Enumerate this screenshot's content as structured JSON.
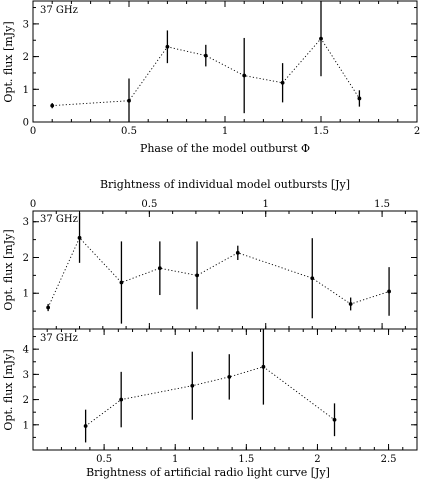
{
  "chart_data": [
    {
      "type": "scatter",
      "panel_label": "37 GHz",
      "xlabel": "Phase of the model outburst Φ",
      "ylabel": "Opt. flux [mJy]",
      "xlim": [
        0,
        2
      ],
      "ylim": [
        0,
        3.7
      ],
      "xticks": [
        0,
        0.5,
        1,
        1.5,
        2
      ],
      "xtick_labels": [
        "0",
        "0.5",
        "1",
        "1.5",
        "2"
      ],
      "yticks": [
        0,
        1,
        2,
        3
      ],
      "ytick_labels": [
        "0",
        "1",
        "2",
        "3"
      ],
      "points": [
        {
          "x": 0.1,
          "y": 0.5,
          "err": 0.08
        },
        {
          "x": 0.5,
          "y": 0.65,
          "err": 0.68
        },
        {
          "x": 0.7,
          "y": 2.3,
          "err": 0.5
        },
        {
          "x": 0.9,
          "y": 2.03,
          "err": 0.33
        },
        {
          "x": 1.1,
          "y": 1.42,
          "err": 1.15
        },
        {
          "x": 1.3,
          "y": 1.2,
          "err": 0.6
        },
        {
          "x": 1.5,
          "y": 2.55,
          "err": 1.15
        },
        {
          "x": 1.7,
          "y": 0.72,
          "err": 0.25
        }
      ]
    },
    {
      "type": "scatter",
      "panel_label": "37 GHz",
      "xlabel": "Brightness of individual model outbursts [Jy]",
      "ylabel": "Opt. flux [mJy]",
      "xlim": [
        0,
        1.65
      ],
      "ylim": [
        0,
        3.3
      ],
      "xticks": [
        0,
        0.5,
        1,
        1.5
      ],
      "xtick_labels": [
        "0",
        "0.5",
        "1",
        "1.5"
      ],
      "yticks": [
        1,
        2,
        3
      ],
      "ytick_labels": [
        "1",
        "2",
        "3"
      ],
      "points": [
        {
          "x": 0.065,
          "y": 0.6,
          "err": 0.1
        },
        {
          "x": 0.2,
          "y": 2.55,
          "err": 0.7
        },
        {
          "x": 0.38,
          "y": 1.3,
          "err": 1.15
        },
        {
          "x": 0.545,
          "y": 1.7,
          "err": 0.75
        },
        {
          "x": 0.705,
          "y": 1.5,
          "err": 0.95
        },
        {
          "x": 0.88,
          "y": 2.13,
          "err": 0.2
        },
        {
          "x": 1.2,
          "y": 1.42,
          "err": 1.12
        },
        {
          "x": 1.365,
          "y": 0.7,
          "err": 0.18
        },
        {
          "x": 1.53,
          "y": 1.05,
          "err": 0.68
        }
      ]
    },
    {
      "type": "scatter",
      "panel_label": "37 GHz",
      "xlabel": "Brightness of artificial radio light curve [Jy]",
      "ylabel": "Opt. flux [mJy]",
      "xlim": [
        0,
        2.7
      ],
      "ylim": [
        0,
        4.8
      ],
      "xticks": [
        0.5,
        1,
        1.5,
        2,
        2.5
      ],
      "xtick_labels": [
        "0.5",
        "1",
        "1.5",
        "2",
        "2.5"
      ],
      "yticks": [
        1,
        2,
        3,
        4
      ],
      "ytick_labels": [
        "1",
        "2",
        "3",
        "4"
      ],
      "points": [
        {
          "x": 0.37,
          "y": 0.95,
          "err": 0.65
        },
        {
          "x": 0.62,
          "y": 2.0,
          "err": 1.1
        },
        {
          "x": 1.12,
          "y": 2.55,
          "err": 1.35
        },
        {
          "x": 1.38,
          "y": 2.9,
          "err": 0.9
        },
        {
          "x": 1.62,
          "y": 3.3,
          "err": 1.5
        },
        {
          "x": 2.12,
          "y": 1.2,
          "err": 0.65
        }
      ]
    }
  ]
}
